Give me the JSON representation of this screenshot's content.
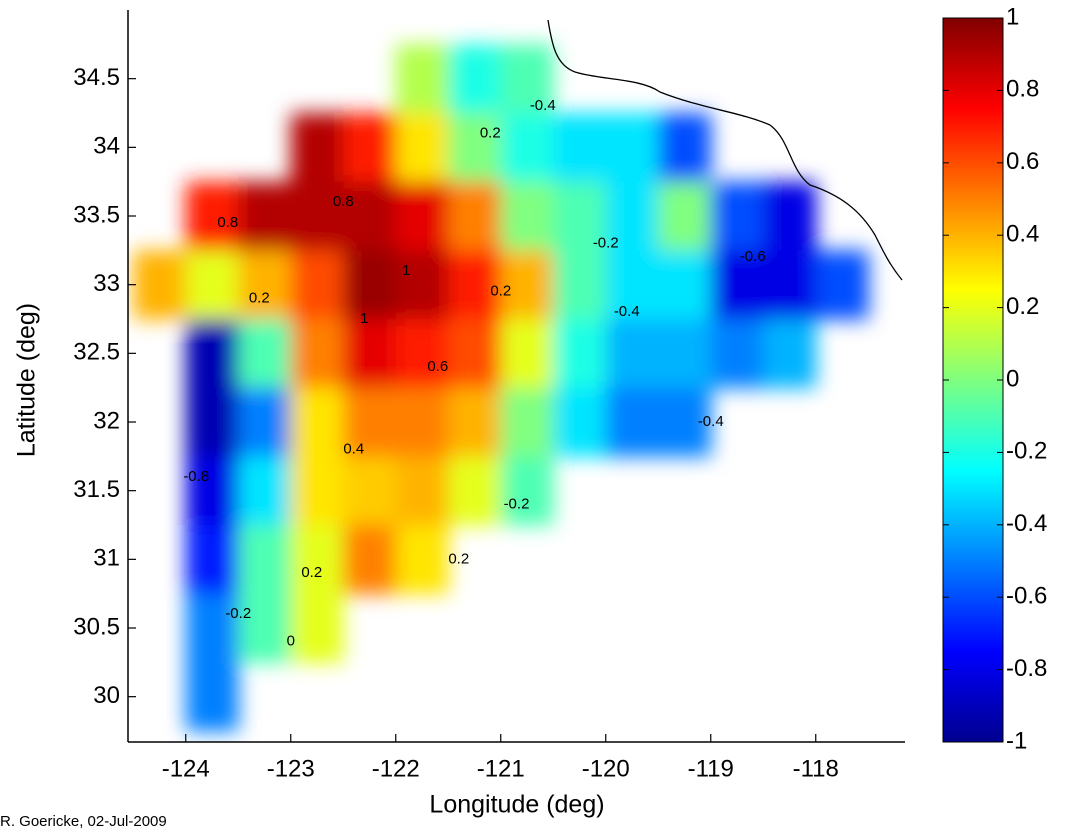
{
  "chart_data": {
    "type": "contour",
    "x_label": "Longitude (deg)",
    "y_label": "Latitude (deg)",
    "credit": "R. Goericke, 02-Jul-2009",
    "xlim": [
      -124.55,
      -117.15
    ],
    "xticks": [
      -124,
      -123,
      -122,
      -121,
      -120,
      -119,
      -118
    ],
    "ylim": [
      29.67,
      35.0
    ],
    "yticks": [
      30,
      30.5,
      31,
      31.5,
      32,
      32.5,
      33,
      33.5,
      34,
      34.5
    ],
    "colormap": "jet",
    "clim": [
      -1,
      1
    ],
    "cticks": [
      -1,
      -0.8,
      -0.6,
      -0.4,
      -0.2,
      0,
      0.2,
      0.4,
      0.6,
      0.8,
      1
    ],
    "field": {
      "lon": [
        -124.25,
        -123.75,
        -123.25,
        -122.75,
        -122.25,
        -121.75,
        -121.25,
        -120.75,
        -120.25,
        -119.75,
        -119.25,
        -118.75,
        -118.25,
        -117.75
      ],
      "lat": [
        34.5,
        34,
        33.5,
        33,
        32.5,
        32,
        31.5,
        31,
        30.5,
        30
      ],
      "values": [
        [
          null,
          null,
          null,
          null,
          null,
          0.1,
          -0.2,
          -0.1,
          null,
          null,
          null,
          null,
          null,
          null
        ],
        [
          null,
          null,
          null,
          0.9,
          0.7,
          0.3,
          0.0,
          -0.2,
          -0.3,
          -0.3,
          -0.6,
          null,
          null,
          null
        ],
        [
          null,
          0.7,
          0.9,
          0.9,
          0.9,
          0.8,
          0.5,
          0.0,
          -0.1,
          -0.3,
          0.0,
          -0.6,
          -0.8,
          null
        ],
        [
          0.4,
          0.2,
          0.4,
          0.6,
          0.95,
          0.9,
          0.7,
          0.4,
          -0.1,
          -0.3,
          -0.3,
          -0.8,
          -0.8,
          -0.6
        ],
        [
          null,
          -0.9,
          -0.1,
          0.5,
          0.8,
          0.7,
          0.6,
          0.2,
          -0.2,
          -0.4,
          -0.4,
          -0.5,
          -0.4,
          null
        ],
        [
          null,
          -0.9,
          -0.5,
          0.3,
          0.5,
          0.5,
          0.4,
          0.0,
          -0.3,
          -0.5,
          -0.5,
          null,
          null,
          null
        ],
        [
          null,
          -0.8,
          -0.3,
          0.3,
          0.35,
          0.4,
          0.2,
          -0.1,
          null,
          null,
          null,
          null,
          null,
          null
        ],
        [
          null,
          -0.7,
          -0.1,
          0.2,
          0.5,
          0.3,
          null,
          null,
          null,
          null,
          null,
          null,
          null,
          null
        ],
        [
          null,
          -0.5,
          -0.1,
          0.2,
          null,
          null,
          null,
          null,
          null,
          null,
          null,
          null,
          null,
          null
        ],
        [
          null,
          -0.5,
          null,
          null,
          null,
          null,
          null,
          null,
          null,
          null,
          null,
          null,
          null,
          null
        ]
      ]
    },
    "contour_labels": [
      {
        "lon": -123.6,
        "lat": 33.45,
        "value": 0.8
      },
      {
        "lon": -122.5,
        "lat": 33.6,
        "value": 0.8
      },
      {
        "lon": -121.9,
        "lat": 33.1,
        "value": 1
      },
      {
        "lon": -122.3,
        "lat": 32.75,
        "value": 1
      },
      {
        "lon": -121.6,
        "lat": 32.4,
        "value": 0.6
      },
      {
        "lon": -122.4,
        "lat": 31.8,
        "value": 0.4
      },
      {
        "lon": -121.0,
        "lat": 32.95,
        "value": 0.2
      },
      {
        "lon": -123.3,
        "lat": 32.9,
        "value": 0.2
      },
      {
        "lon": -123.9,
        "lat": 31.6,
        "value": -0.8
      },
      {
        "lon": -122.8,
        "lat": 30.9,
        "value": 0.2
      },
      {
        "lon": -121.4,
        "lat": 31.0,
        "value": 0.2
      },
      {
        "lon": -120.85,
        "lat": 31.4,
        "value": -0.2
      },
      {
        "lon": -123.5,
        "lat": 30.6,
        "value": -0.2
      },
      {
        "lon": -123.0,
        "lat": 30.4,
        "value": 0
      },
      {
        "lon": -119.8,
        "lat": 32.8,
        "value": -0.4
      },
      {
        "lon": -119.0,
        "lat": 32.0,
        "value": -0.4
      },
      {
        "lon": -118.6,
        "lat": 33.2,
        "value": -0.6
      },
      {
        "lon": -120.0,
        "lat": 33.3,
        "value": -0.2
      },
      {
        "lon": -121.1,
        "lat": 34.1,
        "value": 0.2
      },
      {
        "lon": -120.6,
        "lat": 34.3,
        "value": -0.4
      }
    ]
  }
}
